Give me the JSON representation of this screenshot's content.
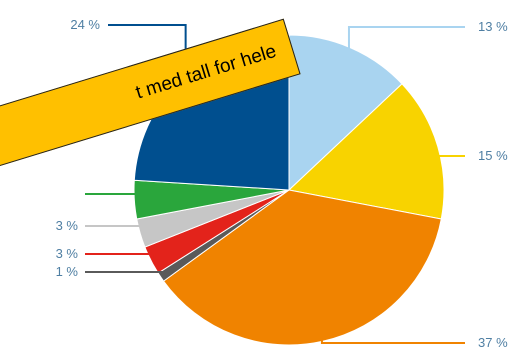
{
  "chart_data": {
    "type": "pie",
    "start_angle_deg": 0,
    "direction": "clockwise",
    "colors": [
      "#a9d4f0",
      "#f8d300",
      "#f08300",
      "#5a5a5a",
      "#e3231b",
      "#c6c6c6",
      "#2aa63c",
      "#004f8f"
    ],
    "values": [
      13,
      15,
      37,
      1,
      3,
      3,
      4,
      24
    ],
    "labels": [
      "13 %",
      "15 %",
      "37 %",
      "1 %",
      "3 %",
      "3 %",
      "",
      "24 %"
    ],
    "title": ""
  },
  "overlay": {
    "banner_text": "t med tall for hele",
    "banner_color": "#ffc000"
  }
}
